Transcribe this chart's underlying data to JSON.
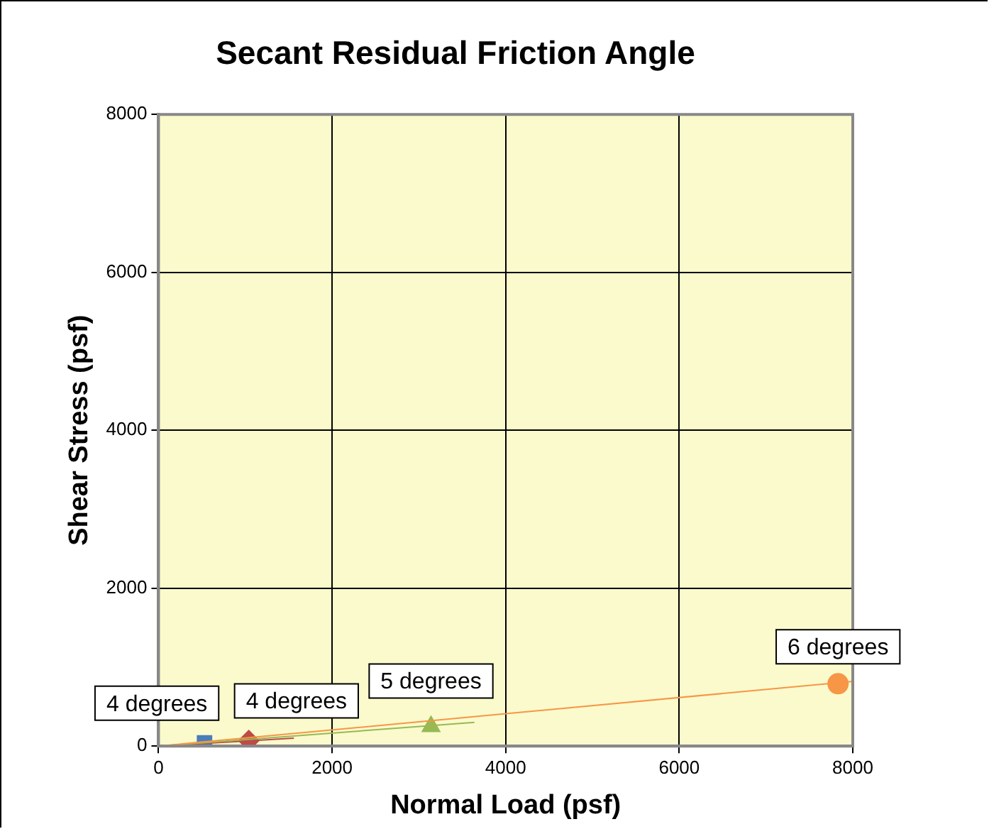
{
  "chart_data": {
    "type": "scatter",
    "title": "Secant Residual Friction Angle",
    "xlabel": "Normal Load (psf)",
    "ylabel": "Shear Stress (psf)",
    "xlim": [
      0,
      8000
    ],
    "xticks": [
      0,
      2000,
      4000,
      6000,
      8000
    ],
    "ylim": [
      0,
      8000
    ],
    "yticks": [
      0,
      2000,
      4000,
      6000,
      8000
    ],
    "grid": true,
    "legend": false,
    "series": [
      {
        "type": "scatter",
        "color": "#4a7ebb",
        "marker": "square",
        "x": [
          530
        ],
        "values": [
          40
        ]
      },
      {
        "type": "scatter",
        "color": "#be4b48",
        "marker": "diamond",
        "x": [
          1040
        ],
        "values": [
          70
        ]
      },
      {
        "type": "scatter",
        "color": "#98b954",
        "marker": "triangle",
        "x": [
          3140
        ],
        "values": [
          250
        ]
      },
      {
        "type": "scatter",
        "color": "#f79646",
        "marker": "circle",
        "x": [
          7830
        ],
        "values": [
          790
        ]
      },
      {
        "type": "line",
        "color": "#be4b48",
        "marker": "none",
        "x": [
          0,
          1560
        ],
        "values": [
          0,
          100
        ]
      },
      {
        "type": "line",
        "color": "#98b954",
        "marker": "none",
        "x": [
          0,
          3640
        ],
        "values": [
          0,
          300
        ]
      },
      {
        "type": "line",
        "color": "#f79646",
        "marker": "none",
        "x": [
          0,
          8000
        ],
        "values": [
          0,
          820
        ]
      }
    ],
    "annotations": [
      {
        "text": "4 degrees",
        "x": 530,
        "y": 40
      },
      {
        "text": "4 degrees",
        "x": 1040,
        "y": 70
      },
      {
        "text": "5 degrees",
        "x": 3140,
        "y": 250
      },
      {
        "text": "6 degrees",
        "x": 7830,
        "y": 790
      }
    ]
  }
}
